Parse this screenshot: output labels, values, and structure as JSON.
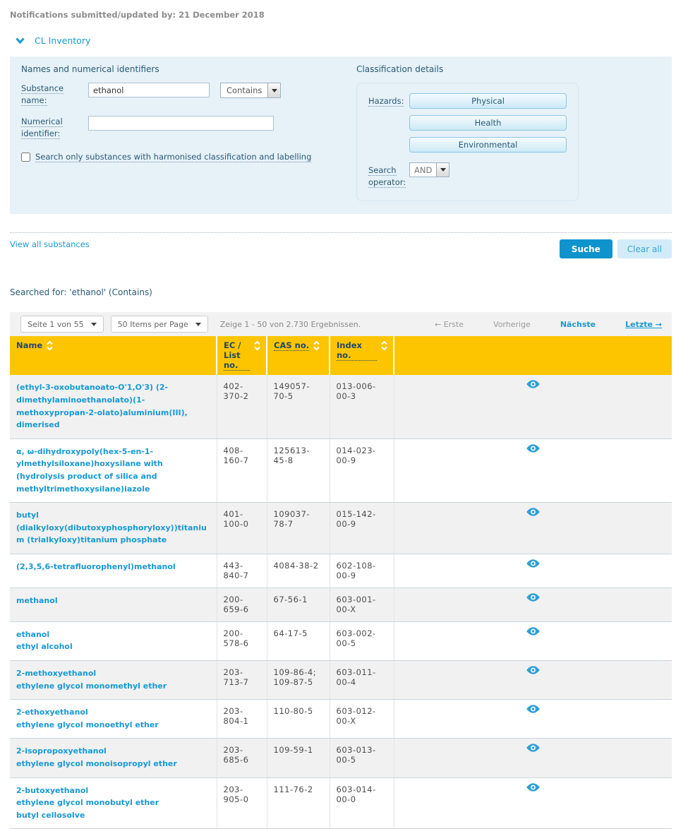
{
  "theme": {
    "accent-blue": "#1899d4",
    "dark-blue": "#2a5a74",
    "panel-blue": "#e7f1f8",
    "header-yellow": "#fdc500",
    "row-alt-gray": "#f1f1f1"
  },
  "icons": {
    "collapse": "chevron-down-icon",
    "dropdowns": "caret-down-icon",
    "column_sort": "sort-arrows-icon",
    "row_action": "eye-icon"
  },
  "header": {
    "notifications_label": "Notifications submitted/updated by: 21 December 2018",
    "inventory_title": "CL Inventory"
  },
  "search_form": {
    "names_section_title": "Names and numerical identifiers",
    "substance_name_label": "Substance name:",
    "substance_name_value": "ethanol",
    "match_mode_value": "Contains",
    "numerical_identifier_label": "Numerical identifier:",
    "numerical_identifier_value": "",
    "harmonised_checkbox_label": "Search only substances with harmonised classification and labelling",
    "classification_section_title": "Classification details",
    "hazards_label": "Hazards:",
    "hazard_buttons": [
      "Physical",
      "Health",
      "Environmental"
    ],
    "search_operator_label": "Search operator:",
    "search_operator_value": "AND",
    "view_all_link": "View all substances",
    "search_button": "Suche",
    "clear_button": "Clear all"
  },
  "results": {
    "searched_for": "Searched for: 'ethanol' (Contains)",
    "pagination": {
      "page_select": "Seite 1 von 55",
      "items_per_page": "50 Items per Page",
      "summary": "Zeige 1 - 50 von 2.730 Ergebnissen.",
      "first": "← Erste",
      "prev": "Vorherige",
      "next": "Nächste",
      "last": "Letzte →"
    },
    "table": {
      "columns": [
        "Name",
        "EC / List no.",
        "CAS no.",
        "Index no."
      ],
      "rows": [
        {
          "names": [
            "(ethyl-3-oxobutanoato-O'1,O'3) (2-dimethylaminoethanolato)(1-methoxypropan-2-olato)aluminium(III), dimerised"
          ],
          "ec": "402-370-2",
          "cas": "149057-70-5",
          "index": "013-006-00-3"
        },
        {
          "names": [
            "α, ω-dihydroxypoly(hex-5-en-1-ylmethylsiloxane)hoxysilane with (hydrolysis product of silica and methyltrimethoxysilane)iazole"
          ],
          "ec": "408-160-7",
          "cas": "125613-45-8",
          "index": "014-023-00-9"
        },
        {
          "names": [
            "butyl (dialkyloxy(dibutoxyphosphoryloxy))titanium (trialkyloxy)titanium phosphate"
          ],
          "ec": "401-100-0",
          "cas": "109037-78-7",
          "index": "015-142-00-9"
        },
        {
          "names": [
            "(2,3,5,6-tetrafluorophenyl)methanol"
          ],
          "ec": "443-840-7",
          "cas": "4084-38-2",
          "index": "602-108-00-9"
        },
        {
          "names": [
            "methanol"
          ],
          "ec": "200-659-6",
          "cas": "67-56-1",
          "index": "603-001-00-X"
        },
        {
          "names": [
            "ethanol",
            "ethyl alcohol"
          ],
          "ec": "200-578-6",
          "cas": "64-17-5",
          "index": "603-002-00-5"
        },
        {
          "names": [
            "2-methoxyethanol",
            "ethylene glycol monomethyl ether"
          ],
          "ec": "203-713-7",
          "cas": "109-86-4; 109-87-5",
          "index": "603-011-00-4"
        },
        {
          "names": [
            "2-ethoxyethanol",
            "ethylene glycol monoethyl ether"
          ],
          "ec": "203-804-1",
          "cas": "110-80-5",
          "index": "603-012-00-X"
        },
        {
          "names": [
            "2-isopropoxyethanol",
            "ethylene glycol monoisopropyl ether"
          ],
          "ec": "203-685-6",
          "cas": "109-59-1",
          "index": "603-013-00-5"
        },
        {
          "names": [
            "2-butoxyethanol",
            "ethylene glycol monobutyl ether",
            "butyl cellosolve"
          ],
          "ec": "203-905-0",
          "cas": "111-76-2",
          "index": "603-014-00-0"
        }
      ]
    }
  }
}
